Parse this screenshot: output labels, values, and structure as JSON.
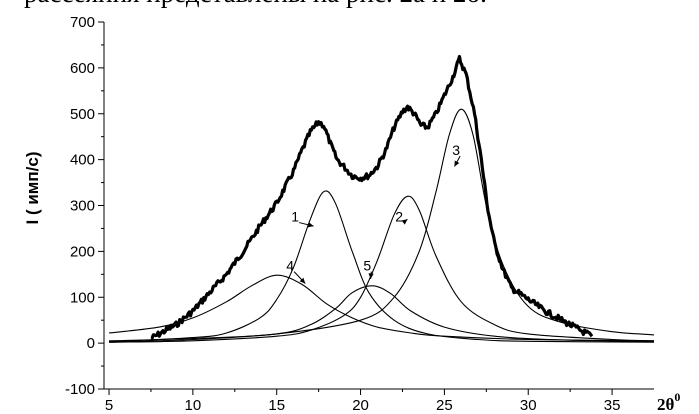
{
  "header_text": "рассеяния представлены на рис. 2а и 2б.",
  "chart_data": {
    "type": "line",
    "title": "",
    "xlabel": "2θ",
    "xlabel_superscript": "0",
    "ylabel": "I ( имп/с)",
    "xlim": [
      4.7,
      37.5
    ],
    "ylim": [
      -100,
      700
    ],
    "xticks": [
      5,
      10,
      15,
      20,
      25,
      30,
      35
    ],
    "yticks": [
      -100,
      0,
      100,
      200,
      300,
      400,
      500,
      600,
      700
    ],
    "grid": false,
    "legend": "none",
    "line_color": "#000000",
    "peak_labels": [
      "1",
      "2",
      "3",
      "4",
      "5"
    ],
    "series": [
      {
        "x": [
          7.5,
          8.0,
          9.0,
          10.0,
          11.0,
          12.0,
          13.0,
          14.0,
          15.0,
          15.5,
          16.0,
          16.5,
          17.0,
          17.5,
          17.8,
          18.2,
          18.6,
          19.0,
          19.5,
          20.0,
          20.5,
          21.0,
          21.5,
          22.0,
          22.5,
          22.8,
          23.2,
          23.6,
          24.0,
          24.5,
          25.0,
          25.5,
          25.9,
          26.3,
          26.8,
          27.2,
          27.6,
          28.0,
          28.5,
          29.0,
          30.0,
          31.0,
          32.0,
          33.0,
          33.8
        ],
        "y": [
          10,
          20,
          40,
          70,
          110,
          150,
          200,
          255,
          305,
          340,
          375,
          420,
          460,
          482,
          475,
          435,
          400,
          385,
          365,
          360,
          365,
          385,
          420,
          470,
          505,
          515,
          500,
          475,
          470,
          500,
          540,
          580,
          620,
          585,
          500,
          400,
          290,
          215,
          160,
          120,
          95,
          70,
          50,
          30,
          15
        ]
      },
      {
        "name": "1",
        "x": [
          5,
          10,
          12,
          14,
          15,
          16,
          17,
          17.8,
          18.5,
          19.5,
          20.5,
          22,
          24,
          27,
          30,
          37.5
        ],
        "y": [
          3,
          12,
          22,
          55,
          95,
          165,
          270,
          330,
          305,
          200,
          110,
          50,
          20,
          8,
          4,
          2
        ]
      },
      {
        "name": "2",
        "x": [
          5,
          10,
          15,
          17,
          19,
          20,
          21,
          22,
          22.8,
          23.5,
          24.5,
          26,
          28,
          30,
          35,
          37.5
        ],
        "y": [
          2,
          5,
          15,
          28,
          60,
          100,
          180,
          280,
          320,
          290,
          190,
          90,
          40,
          20,
          8,
          5
        ]
      },
      {
        "name": "3",
        "x": [
          5,
          10,
          15,
          20,
          22,
          23.5,
          24.5,
          25.3,
          26.0,
          26.7,
          27.5,
          28.5,
          30,
          32,
          35,
          37.5
        ],
        "y": [
          5,
          10,
          20,
          50,
          100,
          200,
          330,
          455,
          510,
          455,
          300,
          170,
          80,
          45,
          25,
          18
        ]
      },
      {
        "name": "4",
        "x": [
          5,
          8,
          10,
          12,
          13.5,
          15,
          16.5,
          18,
          19.5,
          21,
          23,
          25,
          30,
          37.5
        ],
        "y": [
          22,
          35,
          55,
          90,
          125,
          148,
          128,
          85,
          55,
          35,
          22,
          15,
          8,
          5
        ]
      },
      {
        "name": "5",
        "x": [
          5,
          10,
          15,
          17,
          18.5,
          19.5,
          20.7,
          21.8,
          23,
          25,
          28,
          32,
          37.5
        ],
        "y": [
          2,
          8,
          20,
          40,
          75,
          110,
          125,
          108,
          70,
          35,
          15,
          7,
          4
        ]
      }
    ]
  }
}
